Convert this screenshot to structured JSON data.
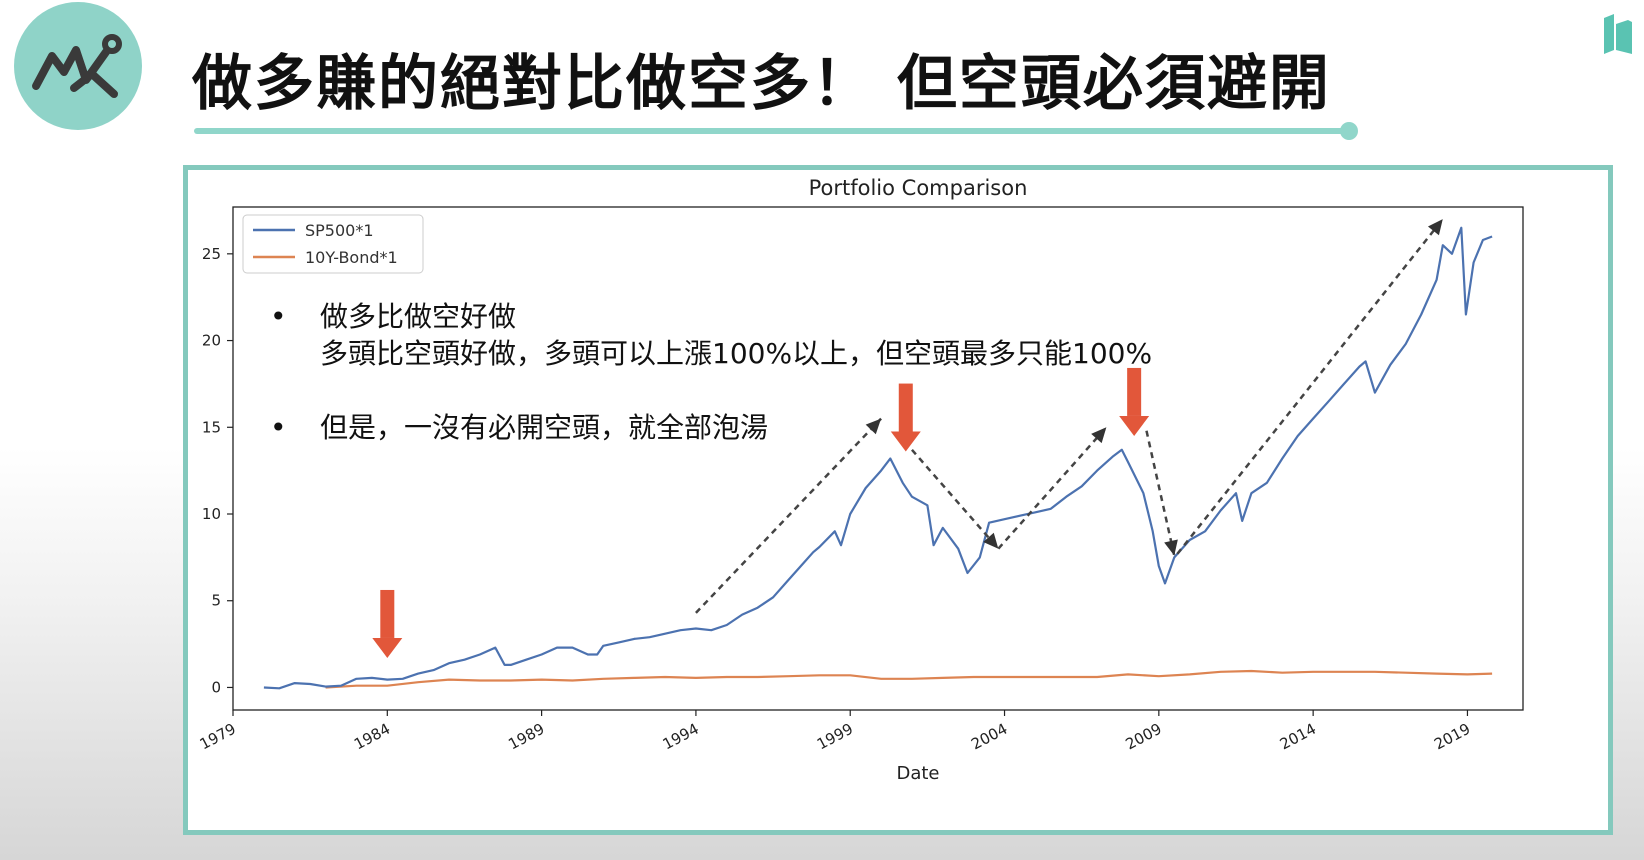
{
  "slide": {
    "title": "做多賺的絕對比做空多！ 但空頭必須避開",
    "logo_icon": "line-chart-icon",
    "brand_icon": "bookmark-logo-icon",
    "colors": {
      "accent": "#8fd3c8",
      "frame": "#84c9bd",
      "annotation_arrow": "#e2573a"
    }
  },
  "notes": [
    {
      "bullet": "•",
      "lines": [
        "做多比做空好做",
        "多頭比空頭好做，多頭可以上漲100%以上，但空頭最多只能100%"
      ]
    },
    {
      "bullet": "•",
      "lines": [
        "但是，一沒有必開空頭，就全部泡湯"
      ]
    }
  ],
  "chart_data": {
    "type": "line",
    "title": "Portfolio Comparison",
    "xlabel": "Date",
    "ylabel": "",
    "xlim": [
      1979,
      2020.8
    ],
    "ylim": [
      -1.3,
      27.7
    ],
    "x_ticks": [
      1979,
      1984,
      1989,
      1994,
      1999,
      2004,
      2009,
      2014,
      2019
    ],
    "x_tick_labels": [
      "1979",
      "1984",
      "1989",
      "1994",
      "1999",
      "2004",
      "2009",
      "2014",
      "2019"
    ],
    "y_ticks": [
      0,
      5,
      10,
      15,
      20,
      25
    ],
    "y_tick_labels": [
      "0",
      "5",
      "10",
      "15",
      "20",
      "25"
    ],
    "grid": false,
    "legend_position": "top-left",
    "series": [
      {
        "name": "SP500*1",
        "color": "#4c72b0",
        "x": [
          1980.0,
          1980.5,
          1981.0,
          1981.5,
          1982.0,
          1982.5,
          1983.0,
          1983.5,
          1984.0,
          1984.5,
          1985.0,
          1985.5,
          1986.0,
          1986.5,
          1987.0,
          1987.5,
          1987.8,
          1988.0,
          1988.5,
          1989.0,
          1989.5,
          1990.0,
          1990.5,
          1990.8,
          1991.0,
          1991.5,
          1992.0,
          1992.5,
          1993.0,
          1993.5,
          1994.0,
          1994.5,
          1995.0,
          1995.5,
          1996.0,
          1996.5,
          1997.0,
          1997.5,
          1997.8,
          1998.0,
          1998.5,
          1998.7,
          1999.0,
          1999.5,
          2000.0,
          2000.3,
          2000.7,
          2001.0,
          2001.5,
          2001.7,
          2002.0,
          2002.5,
          2002.8,
          2003.2,
          2003.5,
          2004.0,
          2004.5,
          2005.0,
          2005.5,
          2006.0,
          2006.5,
          2007.0,
          2007.5,
          2007.8,
          2008.0,
          2008.5,
          2008.8,
          2009.0,
          2009.2,
          2009.5,
          2010.0,
          2010.5,
          2011.0,
          2011.5,
          2011.7,
          2012.0,
          2012.5,
          2013.0,
          2013.5,
          2014.0,
          2014.5,
          2015.0,
          2015.5,
          2015.7,
          2016.0,
          2016.5,
          2017.0,
          2017.5,
          2018.0,
          2018.2,
          2018.5,
          2018.8,
          2018.95,
          2019.2,
          2019.5,
          2019.8
        ],
        "values": [
          0.0,
          -0.05,
          0.25,
          0.2,
          0.05,
          0.1,
          0.5,
          0.55,
          0.45,
          0.5,
          0.8,
          1.0,
          1.4,
          1.6,
          1.9,
          2.3,
          1.3,
          1.3,
          1.6,
          1.9,
          2.3,
          2.3,
          1.9,
          1.9,
          2.4,
          2.6,
          2.8,
          2.9,
          3.1,
          3.3,
          3.4,
          3.3,
          3.6,
          4.2,
          4.6,
          5.2,
          6.2,
          7.2,
          7.8,
          8.1,
          9.0,
          8.2,
          10.0,
          11.5,
          12.5,
          13.2,
          11.8,
          11.0,
          10.5,
          8.2,
          9.2,
          8.0,
          6.6,
          7.5,
          9.5,
          9.7,
          9.9,
          10.1,
          10.3,
          11.0,
          11.6,
          12.5,
          13.3,
          13.7,
          13.0,
          11.2,
          9.0,
          7.0,
          6.0,
          7.5,
          8.5,
          9.0,
          10.2,
          11.2,
          9.6,
          11.2,
          11.8,
          13.2,
          14.5,
          15.5,
          16.5,
          17.5,
          18.5,
          18.8,
          17.0,
          18.6,
          19.8,
          21.5,
          23.5,
          25.5,
          25.0,
          26.5,
          21.5,
          24.5,
          25.8,
          26.0
        ]
      },
      {
        "name": "10Y-Bond*1",
        "color": "#dd8452",
        "x": [
          1982.0,
          1983.0,
          1984.0,
          1985.0,
          1986.0,
          1987.0,
          1988.0,
          1989.0,
          1990.0,
          1991.0,
          1992.0,
          1993.0,
          1994.0,
          1995.0,
          1996.0,
          1997.0,
          1998.0,
          1999.0,
          2000.0,
          2001.0,
          2002.0,
          2003.0,
          2004.0,
          2005.0,
          2006.0,
          2007.0,
          2008.0,
          2009.0,
          2010.0,
          2011.0,
          2012.0,
          2013.0,
          2014.0,
          2015.0,
          2016.0,
          2017.0,
          2018.0,
          2019.0,
          2019.8
        ],
        "values": [
          0.0,
          0.1,
          0.1,
          0.3,
          0.45,
          0.4,
          0.4,
          0.45,
          0.4,
          0.5,
          0.55,
          0.6,
          0.55,
          0.6,
          0.6,
          0.65,
          0.7,
          0.7,
          0.5,
          0.5,
          0.55,
          0.6,
          0.6,
          0.6,
          0.6,
          0.6,
          0.75,
          0.65,
          0.75,
          0.9,
          0.95,
          0.85,
          0.9,
          0.9,
          0.9,
          0.85,
          0.8,
          0.75,
          0.8
        ]
      }
    ],
    "annotations": {
      "down_arrows_at": [
        {
          "x": 1984.0,
          "y": 1.7
        },
        {
          "x": 2000.8,
          "y": 13.6
        },
        {
          "x": 2008.2,
          "y": 14.5
        }
      ],
      "dashed_trend_arrows": [
        {
          "from": [
            1994.0,
            4.3
          ],
          "to": [
            2000.0,
            15.5
          ]
        },
        {
          "from": [
            2001.0,
            13.7
          ],
          "to": [
            2003.8,
            8.0
          ]
        },
        {
          "from": [
            2003.8,
            8.0
          ],
          "to": [
            2007.3,
            15.0
          ]
        },
        {
          "from": [
            2008.6,
            14.8
          ],
          "to": [
            2009.5,
            7.6
          ]
        },
        {
          "from": [
            2009.6,
            7.7
          ],
          "to": [
            2018.2,
            27.0
          ]
        }
      ]
    }
  }
}
